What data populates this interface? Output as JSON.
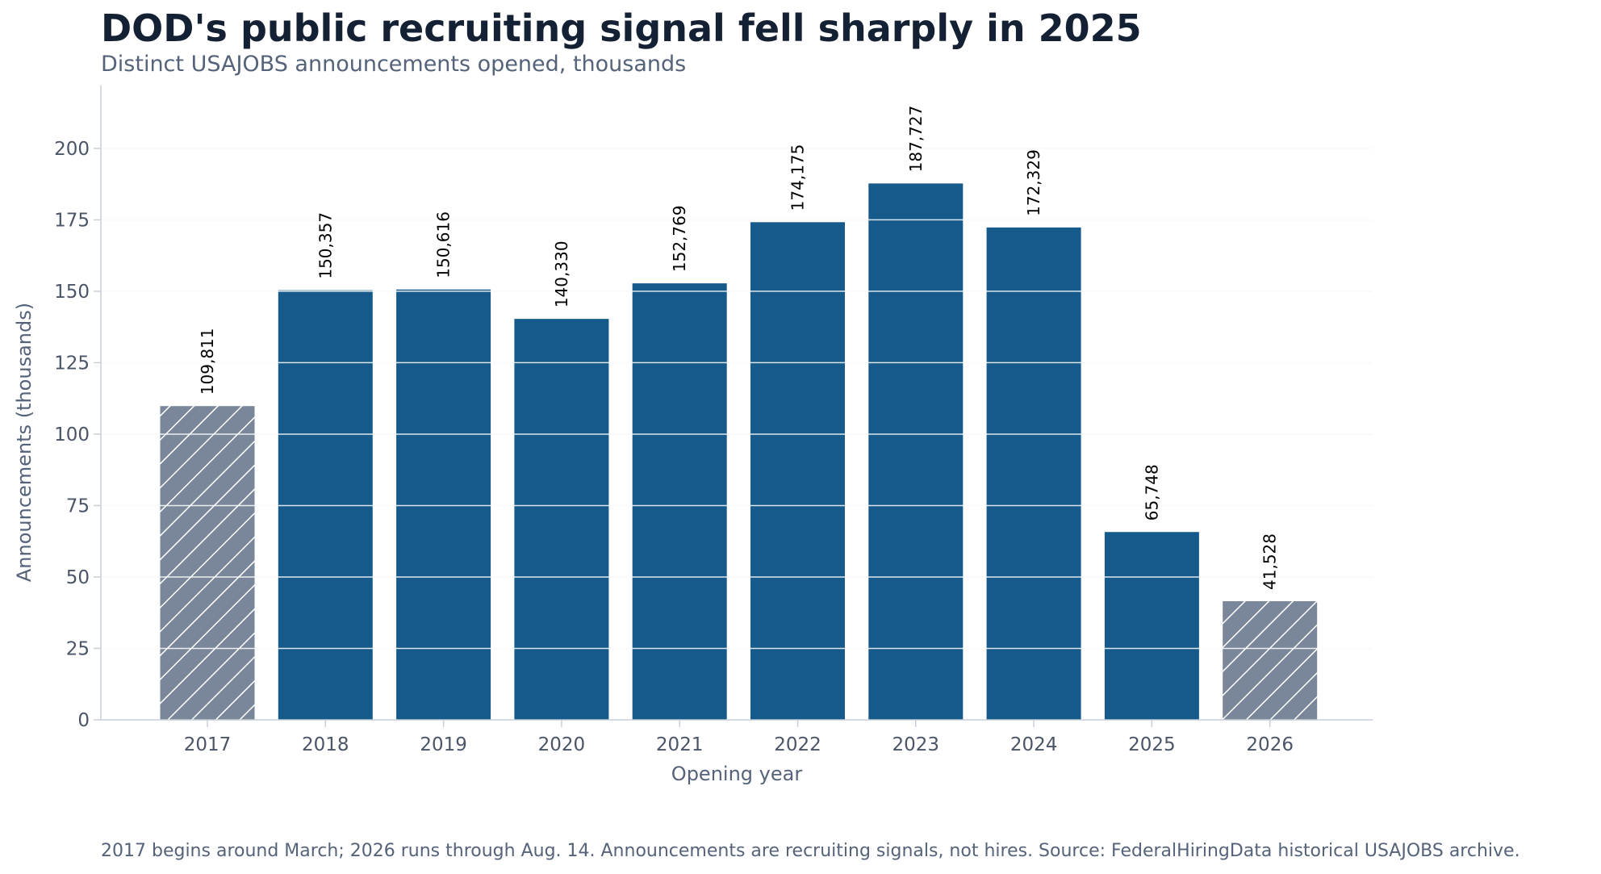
{
  "title": "DOD's public recruiting signal fell sharply in 2025",
  "subtitle": "Distinct USAJOBS announcements opened, thousands",
  "footnote": "2017 begins around March; 2026 runs through Aug. 14. Announcements are recruiting signals, not hires. Source: FederalHiringData historical USAJOBS archive.",
  "chart_data": {
    "type": "bar",
    "title": "DOD's public recruiting signal fell sharply in 2025",
    "subtitle": "Distinct USAJOBS announcements opened, thousands",
    "xlabel": "Opening year",
    "ylabel": "Announcements (thousands)",
    "ylim": [
      0,
      222
    ],
    "yticks": [
      0,
      25,
      50,
      75,
      100,
      125,
      150,
      175,
      200
    ],
    "grid": true,
    "categories": [
      "2017",
      "2018",
      "2019",
      "2020",
      "2021",
      "2022",
      "2023",
      "2024",
      "2025",
      "2026"
    ],
    "values": [
      109.811,
      150.357,
      150.616,
      140.33,
      152.769,
      174.175,
      187.727,
      172.329,
      65.748,
      41.528
    ],
    "data_labels": [
      "109,811",
      "150,357",
      "150,616",
      "140,330",
      "152,769",
      "174,175",
      "187,727",
      "172,329",
      "65,748",
      "41,528"
    ],
    "partial_year": [
      true,
      false,
      false,
      false,
      false,
      false,
      false,
      false,
      false,
      true
    ],
    "colors": {
      "full_year": "#155a8a",
      "partial_year": "#7a8699",
      "grid": "#e3e8ef",
      "axis": "#c8ced8"
    }
  }
}
